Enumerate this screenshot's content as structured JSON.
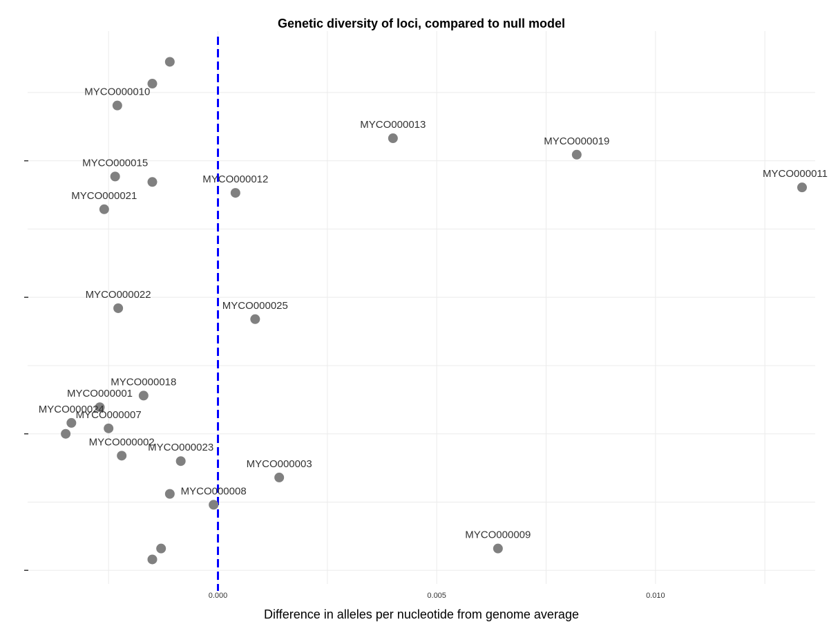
{
  "chart_data": {
    "type": "scatter",
    "title": "Genetic diversity of loci, compared to null model",
    "xlabel": "Difference in alleles per nucleotide from genome average",
    "ylabel": "",
    "xlim": [
      -0.00435,
      0.01365
    ],
    "ylim": [
      -0.2,
      7.9
    ],
    "x_ticks": [
      0.0,
      0.005,
      0.01
    ],
    "x_tick_labels": [
      "0.000",
      "0.005",
      "0.010"
    ],
    "x_minor_ticks": [
      -0.0025,
      0.0025,
      0.0075,
      0.0125
    ],
    "y_ticks": [
      0,
      2,
      4,
      6
    ],
    "y_tick_labels": [
      "",
      "",
      "",
      ""
    ],
    "y_minor_ticks": [
      1,
      3,
      5,
      7
    ],
    "grid": true,
    "reference_line": {
      "x": 0.0,
      "style": "dashed",
      "color": "#0000ff"
    },
    "point_color": "#808080",
    "points": [
      {
        "x": -0.0011,
        "y": 7.45,
        "label": ""
      },
      {
        "x": -0.0015,
        "y": 7.13,
        "label": ""
      },
      {
        "x": -0.0023,
        "y": 6.81,
        "label": "MYCO000010"
      },
      {
        "x": 0.004,
        "y": 6.33,
        "label": "MYCO000013"
      },
      {
        "x": 0.0082,
        "y": 6.09,
        "label": "MYCO000019"
      },
      {
        "x": -0.00235,
        "y": 5.77,
        "label": "MYCO000015"
      },
      {
        "x": -0.0015,
        "y": 5.69,
        "label": ""
      },
      {
        "x": 0.0004,
        "y": 5.53,
        "label": "MYCO000012"
      },
      {
        "x": 0.01335,
        "y": 5.61,
        "label": "MYCO000011"
      },
      {
        "x": -0.0026,
        "y": 5.29,
        "label": "MYCO000021"
      },
      {
        "x": -0.00228,
        "y": 3.84,
        "label": "MYCO000022"
      },
      {
        "x": 0.00085,
        "y": 3.68,
        "label": "MYCO000025"
      },
      {
        "x": -0.0017,
        "y": 2.56,
        "label": "MYCO000018"
      },
      {
        "x": -0.0027,
        "y": 2.39,
        "label": "MYCO000001"
      },
      {
        "x": -0.00335,
        "y": 2.16,
        "label": "MYCO000024"
      },
      {
        "x": -0.0025,
        "y": 2.08,
        "label": "MYCO000007"
      },
      {
        "x": -0.00348,
        "y": 2.0,
        "label": ""
      },
      {
        "x": -0.0022,
        "y": 1.68,
        "label": "MYCO000002"
      },
      {
        "x": -0.00085,
        "y": 1.6,
        "label": "MYCO000023"
      },
      {
        "x": 0.0014,
        "y": 1.36,
        "label": "MYCO000003"
      },
      {
        "x": -0.0011,
        "y": 1.12,
        "label": ""
      },
      {
        "x": -0.0001,
        "y": 0.96,
        "label": "MYCO000008"
      },
      {
        "x": 0.0064,
        "y": 0.32,
        "label": "MYCO000009"
      },
      {
        "x": -0.0013,
        "y": 0.32,
        "label": ""
      },
      {
        "x": -0.0015,
        "y": 0.16,
        "label": ""
      }
    ]
  }
}
